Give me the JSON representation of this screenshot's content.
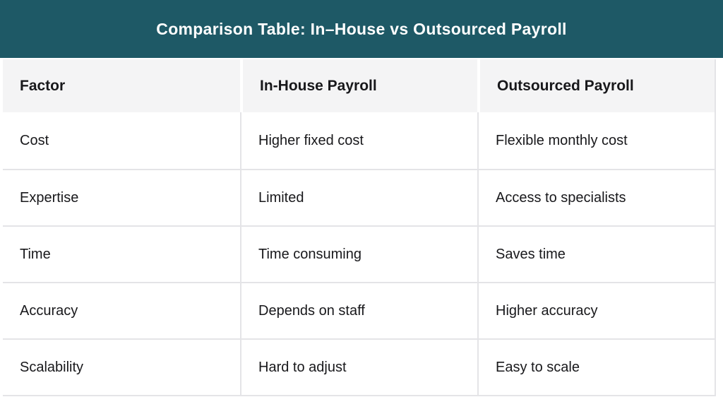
{
  "colors": {
    "title_bg": "#1e5966",
    "title_text": "#ffffff",
    "header_bg": "#f4f4f5",
    "border": "#e4e4e7",
    "body_bg": "#ffffff",
    "text": "#18181b"
  },
  "chart_data": {
    "type": "table",
    "title": "Comparison Table: In–House vs Outsourced Payroll",
    "columns": [
      "Factor",
      "In-House Payroll",
      "Outsourced Payroll"
    ],
    "rows": [
      [
        "Cost",
        "Higher fixed cost",
        "Flexible monthly cost"
      ],
      [
        "Expertise",
        "Limited",
        "Access to specialists"
      ],
      [
        "Time",
        "Time consuming",
        "Saves time"
      ],
      [
        "Accuracy",
        "Depends on staff",
        "Higher accuracy"
      ],
      [
        "Scalability",
        "Hard to adjust",
        "Easy to scale"
      ]
    ]
  }
}
